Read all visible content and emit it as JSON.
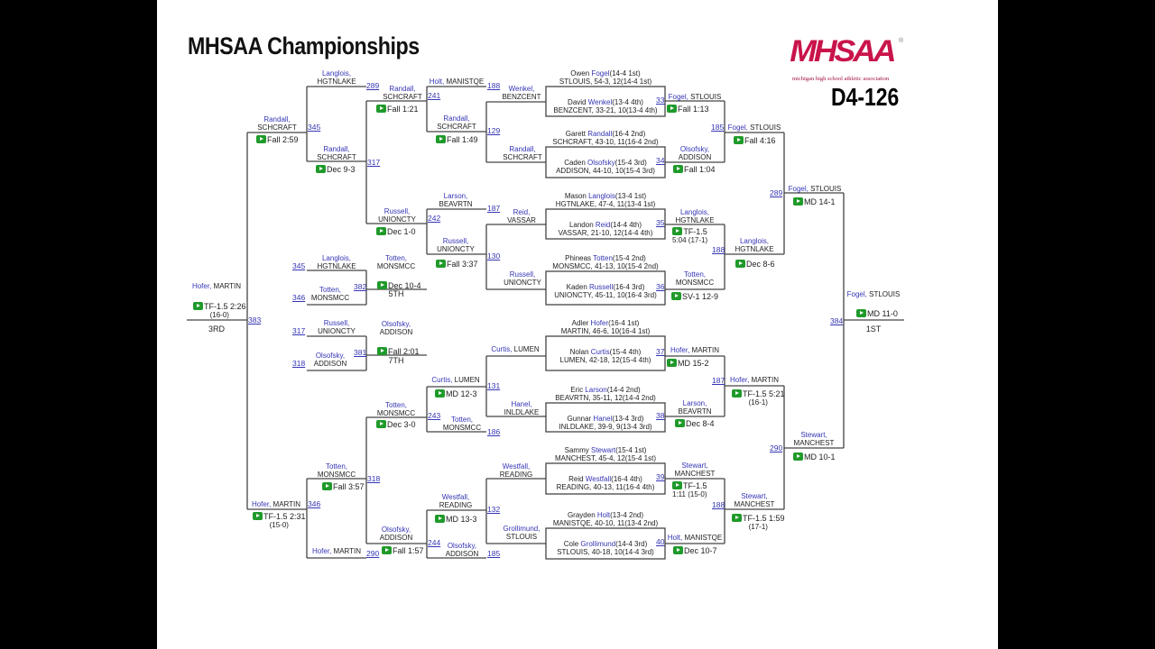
{
  "header": {
    "title": "MHSAA Championships",
    "weight_class": "D4-126"
  },
  "logo": {
    "text": "MHSAA",
    "tagline": "michigan high school athletic association",
    "reg": "®"
  },
  "colors": {
    "name_blue": "#3535b5",
    "video_green": "#1f9a2a",
    "logo_red": "#c8144a"
  },
  "places": {
    "first": "1ST",
    "third": "3RD",
    "fifth": "5TH",
    "seventh": "7TH"
  },
  "boxes": [
    {
      "top": {
        "first": "Owen ",
        "last": "Fogel",
        "rec": "(14-4 1st)",
        "line2": "STLOUIS, 54-3, 12(14-4 1st)"
      },
      "bottom": {
        "first": "David ",
        "last": "Wenkel",
        "rec": "(13-4 4th)",
        "line2": "BENZCENT, 33-21, 10(13-4 4th)"
      },
      "bout": "33"
    },
    {
      "top": {
        "first": "Garett ",
        "last": "Randall",
        "rec": "(16-4 2nd)",
        "line2": "SCHCRAFT, 43-10, 11(16-4 2nd)"
      },
      "bottom": {
        "first": "Caden ",
        "last": "Olsofsky",
        "rec": "(15-4 3rd)",
        "line2": "ADDISON, 44-10, 10(15-4 3rd)"
      },
      "bout": "34"
    },
    {
      "top": {
        "first": "Mason ",
        "last": "Langlois",
        "rec": "(13-4 1st)",
        "line2": "HGTNLAKE, 47-4, 11(13-4 1st)"
      },
      "bottom": {
        "first": "Landon ",
        "last": "Reid",
        "rec": "(14-4 4th)",
        "line2": "VASSAR, 21-10, 12(14-4 4th)"
      },
      "bout": "35"
    },
    {
      "top": {
        "first": "Phineas ",
        "last": "Totten",
        "rec": "(15-4 2nd)",
        "line2": "MONSMCC, 41-13, 10(15-4 2nd)"
      },
      "bottom": {
        "first": "Kaden ",
        "last": "Russell",
        "rec": "(16-4 3rd)",
        "line2": "UNIONCTY, 45-11, 10(16-4 3rd)"
      },
      "bout": "36"
    },
    {
      "top": {
        "first": "Adler ",
        "last": "Hofer",
        "rec": "(16-4 1st)",
        "line2": "MARTIN, 46-6, 10(16-4 1st)"
      },
      "bottom": {
        "first": "Nolan ",
        "last": "Curtis",
        "rec": "(15-4 4th)",
        "line2": "LUMEN, 42-18, 12(15-4 4th)"
      },
      "bout": "37"
    },
    {
      "top": {
        "first": "Eric ",
        "last": "Larson",
        "rec": "(14-4 2nd)",
        "line2": "BEAVRTN, 35-11, 12(14-4 2nd)"
      },
      "bottom": {
        "first": "Gunnar ",
        "last": "Hanel",
        "rec": "(13-4 3rd)",
        "line2": "INLDLAKE, 39-9, 9(13-4 3rd)"
      },
      "bout": "38"
    },
    {
      "top": {
        "first": "Sammy ",
        "last": "Stewart",
        "rec": "(15-4 1st)",
        "line2": "MANCHEST, 45-4, 12(15-4 1st)"
      },
      "bottom": {
        "first": "Reid ",
        "last": "Westfall",
        "rec": "(16-4 4th)",
        "line2": "READING, 40-13, 11(16-4 4th)"
      },
      "bout": "39"
    },
    {
      "top": {
        "first": "Grayden ",
        "last": "Holt",
        "rec": "(13-4 2nd)",
        "line2": "MANISTQE, 40-10, 11(13-4 2nd)"
      },
      "bottom": {
        "first": "Cole ",
        "last": "Grollimund",
        "rec": "(14-4 3rd)",
        "line2": "STLOUIS, 40-18, 10(14-4 3rd)"
      },
      "bout": "40"
    }
  ],
  "slots": {
    "l_sf1": {
      "name": "Randall,",
      "school": "SCHCRAFT"
    },
    "l_qa": {
      "name": "Langlois,",
      "school": "HGTNLAKE"
    },
    "l_qb": {
      "name": "Randall,",
      "school": "SCHCRAFT"
    },
    "l_r3a": {
      "name": "Randall,",
      "school": "SCHCRAFT"
    },
    "l_r3b": {
      "name": "Russell,",
      "school": "UNIONCTY"
    },
    "l_r4a": {
      "name": "Holt,",
      "school": "MANISTQE"
    },
    "l_r4b": {
      "name": "Randall,",
      "school": "SCHCRAFT"
    },
    "l_r4c": {
      "name": "Larson,",
      "school": "BEAVRTN"
    },
    "l_r4d": {
      "name": "Russell,",
      "school": "UNIONCTY"
    },
    "l_r5a": {
      "name": "Wenkel,",
      "school": "BENZCENT"
    },
    "l_r5b": {
      "name": "Randall,",
      "school": "SCHCRAFT"
    },
    "l_r5c": {
      "name": "Reid,",
      "school": "VASSAR"
    },
    "l_r5d": {
      "name": "Russell,",
      "school": "UNIONCTY"
    },
    "r_w1": {
      "name": "Fogel,",
      "school": "STLOUIS"
    },
    "r_w2": {
      "name": "Olsofsky,",
      "school": "ADDISON"
    },
    "r_w3": {
      "name": "Langlois,",
      "school": "HGTNLAKE"
    },
    "r_w4": {
      "name": "Totten,",
      "school": "MONSMCC"
    },
    "r_w5": {
      "name": "Hofer,",
      "school": "MARTIN"
    },
    "r_w6": {
      "name": "Larson,",
      "school": "BEAVRTN"
    },
    "r_w7": {
      "name": "Stewart,",
      "school": "MANCHEST"
    },
    "r_w8": {
      "name": "Holt,",
      "school": "MANISTQE"
    },
    "r_q1": {
      "name": "Fogel,",
      "school": "STLOUIS"
    },
    "r_q2": {
      "name": "Langlois,",
      "school": "HGTNLAKE"
    },
    "r_q3": {
      "name": "Hofer,",
      "school": "MARTIN"
    },
    "r_q4": {
      "name": "Stewart,",
      "school": "MANCHEST"
    },
    "r_s1": {
      "name": "Fogel,",
      "school": "STLOUIS"
    },
    "r_s2": {
      "name": "Stewart,",
      "school": "MANCHEST"
    },
    "champ": {
      "name": "Fogel,",
      "school": "STLOUIS"
    },
    "third": {
      "name": "Hofer,",
      "school": "MARTIN"
    },
    "c5a": {
      "name": "Langlois,",
      "school": "HGTNLAKE"
    },
    "c5b": {
      "name": "Totten,",
      "school": "MONSMCC"
    },
    "c5w": {
      "name": "Totten,",
      "school": "MONSMCC"
    },
    "c7a": {
      "name": "Russell,",
      "school": "UNIONCTY"
    },
    "c7b": {
      "name": "Olsofsky,",
      "school": "ADDISON"
    },
    "c7w": {
      "name": "Olsofsky,",
      "school": "ADDISON"
    },
    "b_r5a": {
      "name": "Curtis,",
      "school": "LUMEN"
    },
    "b_r5b": {
      "name": "Hanel,",
      "school": "INLDLAKE"
    },
    "b_r5c": {
      "name": "Westfall,",
      "school": "READING"
    },
    "b_r5d": {
      "name": "Grollimund,",
      "school": "STLOUIS"
    },
    "b_r4a": {
      "name": "Curtis,",
      "school": "LUMEN"
    },
    "b_r4b": {
      "name": "Totten,",
      "school": "MONSMCC"
    },
    "b_r4c": {
      "name": "Westfall,",
      "school": "READING"
    },
    "b_r4d": {
      "name": "Olsofsky,",
      "school": "ADDISON"
    },
    "b_r3a": {
      "name": "Totten,",
      "school": "MONSMCC"
    },
    "b_r3b": {
      "name": "Olsofsky,",
      "school": "ADDISON"
    },
    "b_qa": {
      "name": "Totten,",
      "school": "MONSMCC"
    },
    "b_qb": {
      "name": "Hofer,",
      "school": "MARTIN"
    },
    "l_sf2": {
      "name": "Hofer,",
      "school": "MARTIN"
    }
  },
  "results": {
    "l_sf1": {
      "text": "Fall 2:59"
    },
    "l_qb": {
      "text": "Dec 9-3"
    },
    "l_r3a": {
      "text": "Fall 1:21"
    },
    "l_r3b": {
      "text": "Dec 1-0"
    },
    "l_r4b": {
      "text": "Fall 1:49"
    },
    "l_r4d": {
      "text": "Fall 3:37"
    },
    "r_w1": {
      "text": "Fall 1:13"
    },
    "r_w2": {
      "text": "Fall 1:04"
    },
    "r_w3": {
      "text": "TF-1.5",
      "text2": "5:04 (17-1)"
    },
    "r_w4": {
      "text": "SV-1 12-9"
    },
    "r_w5": {
      "text": "MD 15-2"
    },
    "r_w6": {
      "text": "Dec 8-4"
    },
    "r_w7": {
      "text": "TF-1.5",
      "text2": "1:11 (15-0)"
    },
    "r_w8": {
      "text": "Dec 10-7"
    },
    "r_q1": {
      "text": "Fall 4:16"
    },
    "r_q2": {
      "text": "Dec 8-6"
    },
    "r_q3": {
      "text": "TF-1.5 5:21",
      "text2": "(16-1)"
    },
    "r_q4": {
      "text": "TF-1.5 1:59",
      "text2": "(17-1)"
    },
    "r_s1": {
      "text": "MD 14-1"
    },
    "r_s2": {
      "text": "MD 10-1"
    },
    "champ": {
      "text": "MD 11-0"
    },
    "third": {
      "text": "TF-1.5 2:26",
      "text2": "(16-0)"
    },
    "c5w": {
      "text": "Dec 10-4"
    },
    "c7w": {
      "text": "Fall 2:01"
    },
    "b_r4a": {
      "text": "MD 12-3"
    },
    "b_r3a": {
      "text": "Dec 3-0"
    },
    "b_r4c": {
      "text": "MD 13-3"
    },
    "b_r3b": {
      "text": "Fall 1:57"
    },
    "b_qa": {
      "text": "Fall 3:57"
    },
    "l_sf2": {
      "text": "TF-1.5 2:31",
      "text2": "(15-0)"
    }
  },
  "bouts": {
    "b289a": "289",
    "b345a": "345",
    "b317a": "317",
    "b241": "241",
    "b242": "242",
    "b188a": "188",
    "b129": "129",
    "b187a": "187",
    "b130": "130",
    "b185a": "185",
    "b188b": "188",
    "b187b": "187",
    "b188c": "188",
    "b289b": "289",
    "b290b": "290",
    "b384": "384",
    "b383": "383",
    "c345": "345",
    "c346": "346",
    "b382": "382",
    "c317": "317",
    "c318": "318",
    "b381": "381",
    "b131": "131",
    "b243": "243",
    "b186": "186",
    "b132": "132",
    "b244": "244",
    "b185b": "185",
    "b318": "318",
    "b346": "346",
    "b290a": "290"
  }
}
